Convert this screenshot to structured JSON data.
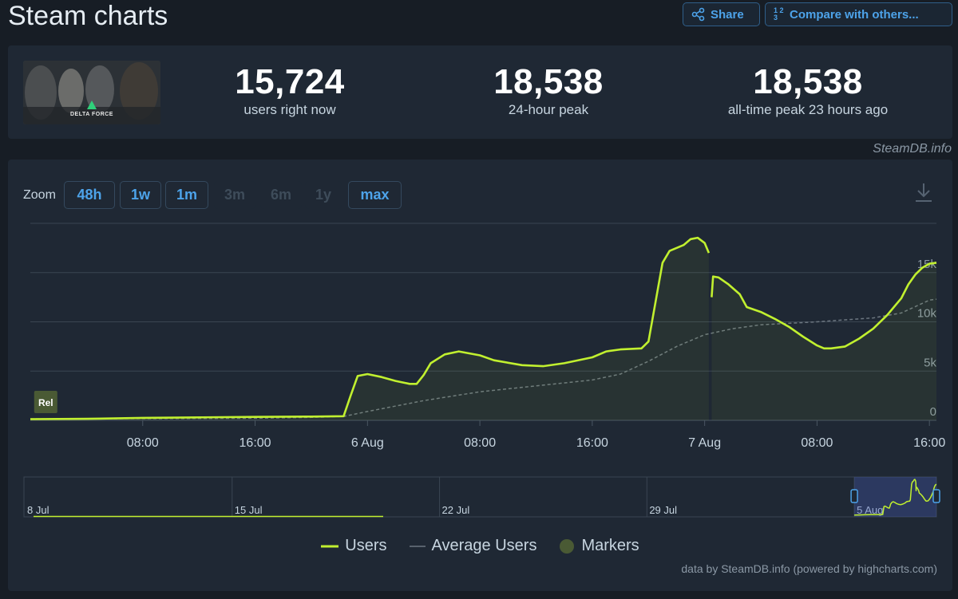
{
  "header": {
    "title": "Steam charts",
    "share_label": "Share",
    "compare_label": "Compare with others...",
    "compare_icon": "1 2 3"
  },
  "stats": [
    {
      "value": "15,724",
      "label": "users right now"
    },
    {
      "value": "18,538",
      "label": "24-hour peak"
    },
    {
      "value": "18,538",
      "label": "all-time peak 23 hours ago"
    }
  ],
  "game_thumb_text": "DELTA FORCE",
  "watermark": "SteamDB.info",
  "zoom": {
    "label": "Zoom",
    "buttons": [
      {
        "label": "48h",
        "enabled": true
      },
      {
        "label": "1w",
        "enabled": true
      },
      {
        "label": "1m",
        "enabled": true
      },
      {
        "label": "3m",
        "enabled": false
      },
      {
        "label": "6m",
        "enabled": false
      },
      {
        "label": "1y",
        "enabled": false
      },
      {
        "label": "max",
        "enabled": true
      }
    ]
  },
  "legend": {
    "users": "Users",
    "average": "Average Users",
    "markers": "Markers"
  },
  "credits": "data by SteamDB.info (powered by highcharts.com)",
  "colors": {
    "users": "#c1f02f",
    "average": "#6c7680",
    "marker": "#4a5a34",
    "accent": "#4da3ea"
  },
  "chart_data": {
    "type": "line",
    "x_unit": "hours since 5 Aug 00:00",
    "xlim": [
      0,
      64.5
    ],
    "ylim": [
      0,
      20000
    ],
    "y_ticks": [
      {
        "v": 0,
        "label": "0"
      },
      {
        "v": 5000,
        "label": "5k"
      },
      {
        "v": 10000,
        "label": "10k"
      },
      {
        "v": 15000,
        "label": "15k"
      }
    ],
    "x_ticks": [
      {
        "v": 8,
        "label": "08:00"
      },
      {
        "v": 16,
        "label": "16:00"
      },
      {
        "v": 24,
        "label": "6 Aug"
      },
      {
        "v": 32,
        "label": "08:00"
      },
      {
        "v": 40,
        "label": "16:00"
      },
      {
        "v": 48,
        "label": "7 Aug"
      },
      {
        "v": 56,
        "label": "08:00"
      },
      {
        "v": 64,
        "label": "16:00"
      }
    ],
    "marker": {
      "x": 0.5,
      "label": "Rel"
    },
    "series": [
      {
        "name": "Users",
        "segments": [
          [
            [
              0,
              120
            ],
            [
              4,
              150
            ],
            [
              8,
              250
            ],
            [
              12,
              300
            ],
            [
              16,
              350
            ],
            [
              20,
              380
            ],
            [
              22.3,
              420
            ],
            [
              22.8,
              2500
            ],
            [
              23.3,
              4500
            ],
            [
              24,
              4700
            ],
            [
              25,
              4400
            ],
            [
              26,
              4000
            ],
            [
              27,
              3700
            ],
            [
              27.5,
              3700
            ],
            [
              28,
              4600
            ],
            [
              28.5,
              5800
            ],
            [
              29.5,
              6700
            ],
            [
              30.5,
              7000
            ],
            [
              32,
              6600
            ],
            [
              33,
              6100
            ],
            [
              35,
              5600
            ],
            [
              36.5,
              5500
            ],
            [
              38,
              5800
            ],
            [
              40,
              6400
            ],
            [
              41,
              7000
            ],
            [
              42,
              7200
            ],
            [
              43.5,
              7300
            ],
            [
              44,
              8000
            ],
            [
              44.5,
              12000
            ],
            [
              45,
              16000
            ],
            [
              45.5,
              17200
            ],
            [
              46.5,
              17800
            ],
            [
              47,
              18400
            ],
            [
              47.5,
              18538
            ],
            [
              48,
              18000
            ],
            [
              48.3,
              17000
            ]
          ],
          [
            [
              48.5,
              12500
            ],
            [
              48.6,
              14600
            ],
            [
              49,
              14500
            ],
            [
              49.7,
              13800
            ],
            [
              50.5,
              12800
            ],
            [
              51,
              11500
            ],
            [
              52,
              11000
            ],
            [
              53,
              10300
            ],
            [
              54,
              9500
            ],
            [
              55,
              8500
            ],
            [
              56,
              7600
            ],
            [
              56.5,
              7300
            ],
            [
              57,
              7300
            ],
            [
              58,
              7500
            ],
            [
              59,
              8300
            ],
            [
              60,
              9300
            ],
            [
              61,
              10700
            ],
            [
              62,
              12400
            ],
            [
              62.5,
              13800
            ],
            [
              63,
              14800
            ],
            [
              63.5,
              15500
            ],
            [
              64,
              15900
            ],
            [
              64.5,
              16000
            ]
          ]
        ]
      },
      {
        "name": "Average Users",
        "points": [
          [
            0,
            150
          ],
          [
            8,
            170
          ],
          [
            16,
            210
          ],
          [
            20,
            300
          ],
          [
            22.3,
            400
          ],
          [
            24,
            900
          ],
          [
            28,
            2000
          ],
          [
            32,
            2900
          ],
          [
            36,
            3500
          ],
          [
            40,
            4100
          ],
          [
            42,
            4700
          ],
          [
            44,
            6000
          ],
          [
            46,
            7500
          ],
          [
            48,
            8700
          ],
          [
            50,
            9300
          ],
          [
            52,
            9700
          ],
          [
            56,
            10000
          ],
          [
            58,
            10200
          ],
          [
            60,
            10400
          ],
          [
            62,
            10900
          ],
          [
            64,
            12200
          ],
          [
            64.5,
            12300
          ]
        ]
      }
    ],
    "navigator": {
      "x_labels": [
        "8 Jul",
        "15 Jul",
        "22 Jul",
        "29 Jul",
        "5 Aug"
      ]
    }
  }
}
